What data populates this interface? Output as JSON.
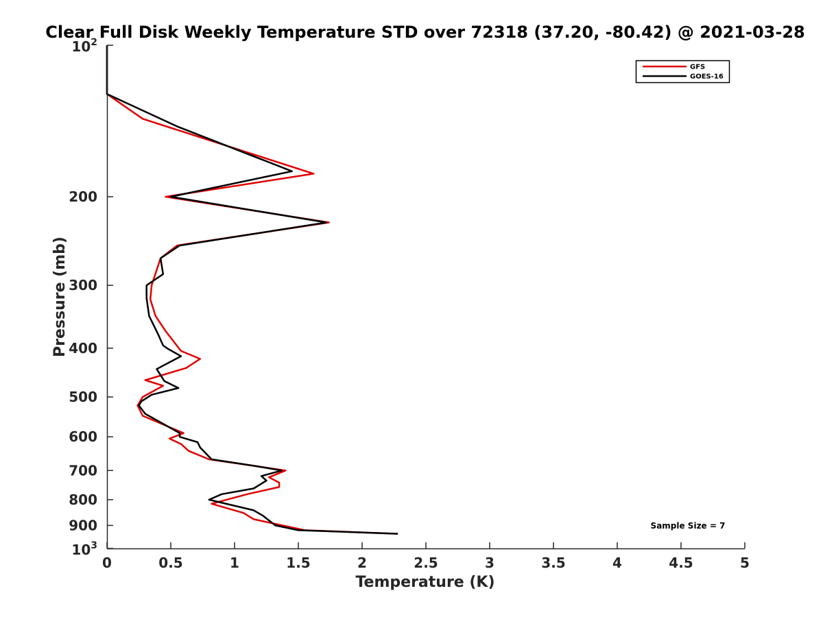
{
  "chart_data": {
    "type": "line",
    "title": "Clear Full Disk Weekly Temperature STD over 72318 (37.20, -80.42) @ 2021-03-28",
    "xlabel": "Temperature (K)",
    "ylabel": "Pressure (mb)",
    "xlim": [
      0,
      5
    ],
    "ylim": [
      100,
      1000
    ],
    "yscale": "log",
    "y_reversed": true,
    "x_ticks": [
      0,
      0.5,
      1,
      1.5,
      2,
      2.5,
      3,
      3.5,
      4,
      4.5,
      5
    ],
    "x_tick_labels": [
      "0",
      "0.5",
      "1",
      "1.5",
      "2",
      "2.5",
      "3",
      "3.5",
      "4",
      "4.5",
      "5"
    ],
    "y_ticks": [
      200,
      300,
      400,
      500,
      600,
      700,
      800,
      900
    ],
    "y_tick_labels": [
      "200",
      "300",
      "400",
      "500",
      "600",
      "700",
      "800",
      "900"
    ],
    "y_decade_ticks": [
      {
        "value": 100,
        "base": "10",
        "exp": "2"
      },
      {
        "value": 1000,
        "base": "10",
        "exp": "3"
      }
    ],
    "legend_position": "top-right",
    "annotation": "Sample Size = 7",
    "grid": false,
    "series": [
      {
        "name": "GFS",
        "color": "#e00000",
        "points": [
          [
            0,
            100
          ],
          [
            0,
            125
          ],
          [
            0.28,
            140
          ],
          [
            1.62,
            180
          ],
          [
            0.46,
            200
          ],
          [
            1.74,
            225
          ],
          [
            0.55,
            250
          ],
          [
            0.42,
            265
          ],
          [
            0.35,
            300
          ],
          [
            0.34,
            320
          ],
          [
            0.38,
            345
          ],
          [
            0.46,
            370
          ],
          [
            0.58,
            405
          ],
          [
            0.73,
            420
          ],
          [
            0.62,
            438
          ],
          [
            0.3,
            463
          ],
          [
            0.44,
            475
          ],
          [
            0.28,
            500
          ],
          [
            0.24,
            520
          ],
          [
            0.28,
            545
          ],
          [
            0.6,
            590
          ],
          [
            0.49,
            605
          ],
          [
            0.58,
            620
          ],
          [
            0.64,
            640
          ],
          [
            0.8,
            665
          ],
          [
            1.4,
            700
          ],
          [
            1.27,
            722
          ],
          [
            1.35,
            740
          ],
          [
            1.35,
            755
          ],
          [
            1.1,
            780
          ],
          [
            0.82,
            815
          ],
          [
            1.07,
            850
          ],
          [
            1.15,
            875
          ],
          [
            1.55,
            920
          ],
          [
            2.28,
            935
          ]
        ]
      },
      {
        "name": "GOES-16",
        "color": "#000000",
        "points": [
          [
            0,
            100
          ],
          [
            0,
            125
          ],
          [
            0.55,
            145
          ],
          [
            1.45,
            178
          ],
          [
            0.5,
            200
          ],
          [
            1.72,
            225
          ],
          [
            0.57,
            250
          ],
          [
            0.42,
            265
          ],
          [
            0.44,
            285
          ],
          [
            0.31,
            300
          ],
          [
            0.31,
            318
          ],
          [
            0.33,
            345
          ],
          [
            0.4,
            375
          ],
          [
            0.44,
            395
          ],
          [
            0.47,
            400
          ],
          [
            0.58,
            415
          ],
          [
            0.39,
            440
          ],
          [
            0.45,
            465
          ],
          [
            0.56,
            480
          ],
          [
            0.35,
            495
          ],
          [
            0.27,
            510
          ],
          [
            0.25,
            520
          ],
          [
            0.3,
            540
          ],
          [
            0.57,
            590
          ],
          [
            0.57,
            600
          ],
          [
            0.71,
            615
          ],
          [
            0.73,
            630
          ],
          [
            0.82,
            665
          ],
          [
            1.15,
            685
          ],
          [
            1.37,
            700
          ],
          [
            1.21,
            718
          ],
          [
            1.25,
            733
          ],
          [
            1.15,
            760
          ],
          [
            0.9,
            780
          ],
          [
            0.8,
            800
          ],
          [
            1.15,
            840
          ],
          [
            1.22,
            860
          ],
          [
            1.32,
            900
          ],
          [
            1.5,
            920
          ],
          [
            2.28,
            935
          ]
        ]
      }
    ]
  }
}
